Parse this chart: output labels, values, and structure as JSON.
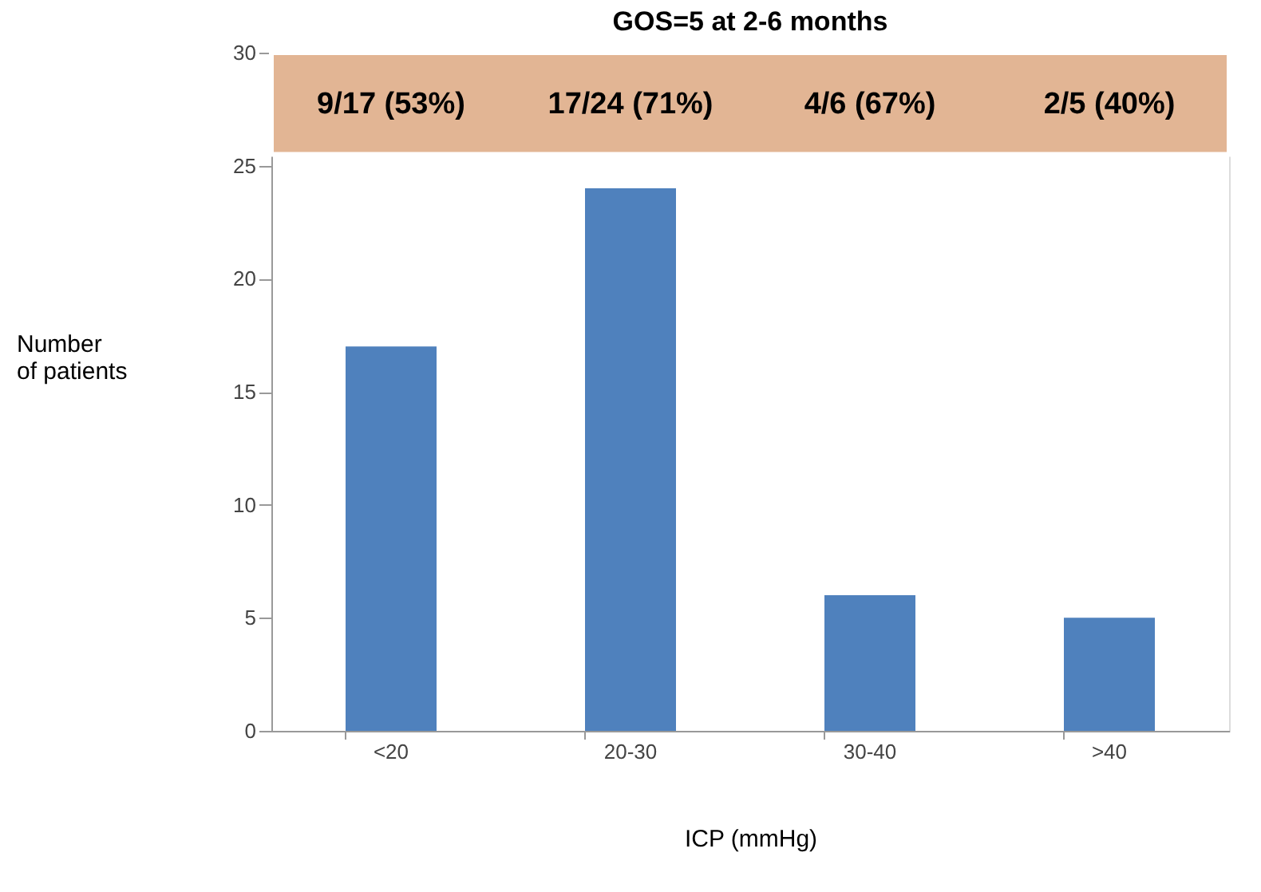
{
  "chart_data": {
    "type": "bar",
    "title": "GOS=5 at 2-6 months",
    "xlabel": "ICP (mmHg)",
    "ylabel": "Number of patients",
    "categories": [
      "<20",
      "20-30",
      "30-40",
      ">40"
    ],
    "values": [
      17,
      24,
      6,
      5
    ],
    "color": "#4f81bd",
    "ylim": [
      0,
      30
    ],
    "yticks": [
      0,
      5,
      10,
      15,
      20,
      25,
      30
    ],
    "grid": false,
    "bands": [
      {
        "axis": "y",
        "from": 25.5,
        "to": 30,
        "color": "#e2b594"
      }
    ],
    "annotations": [
      "9/17 (53%)",
      "17/24 (71%)",
      "4/6 (67%)",
      "2/5 (40%)"
    ]
  }
}
